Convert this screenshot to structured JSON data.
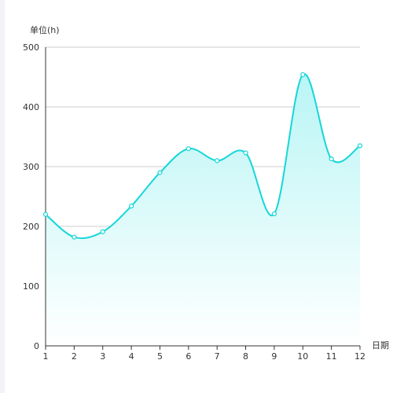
{
  "chart_data": {
    "type": "area",
    "xlabel": "日期",
    "ylabel": "单位(h)",
    "x": [
      1,
      2,
      3,
      4,
      5,
      6,
      7,
      8,
      9,
      10,
      11,
      12
    ],
    "series": [
      {
        "values": [
          220,
          182,
          191,
          234,
          290,
          330,
          310,
          323,
          221,
          454,
          313,
          335
        ]
      }
    ],
    "ylim": [
      0,
      500
    ],
    "yticks": [
      0,
      100,
      200,
      300,
      400,
      500
    ],
    "xticks": [
      "1",
      "2",
      "3",
      "4",
      "5",
      "6",
      "7",
      "8",
      "9",
      "10",
      "11",
      "12"
    ],
    "grid": true,
    "smooth": true,
    "line_color": "#16d6d9",
    "area_color_top": "#b9f5f5",
    "area_color_bottom": "#ffffff",
    "grid_color": "#cccccc"
  }
}
